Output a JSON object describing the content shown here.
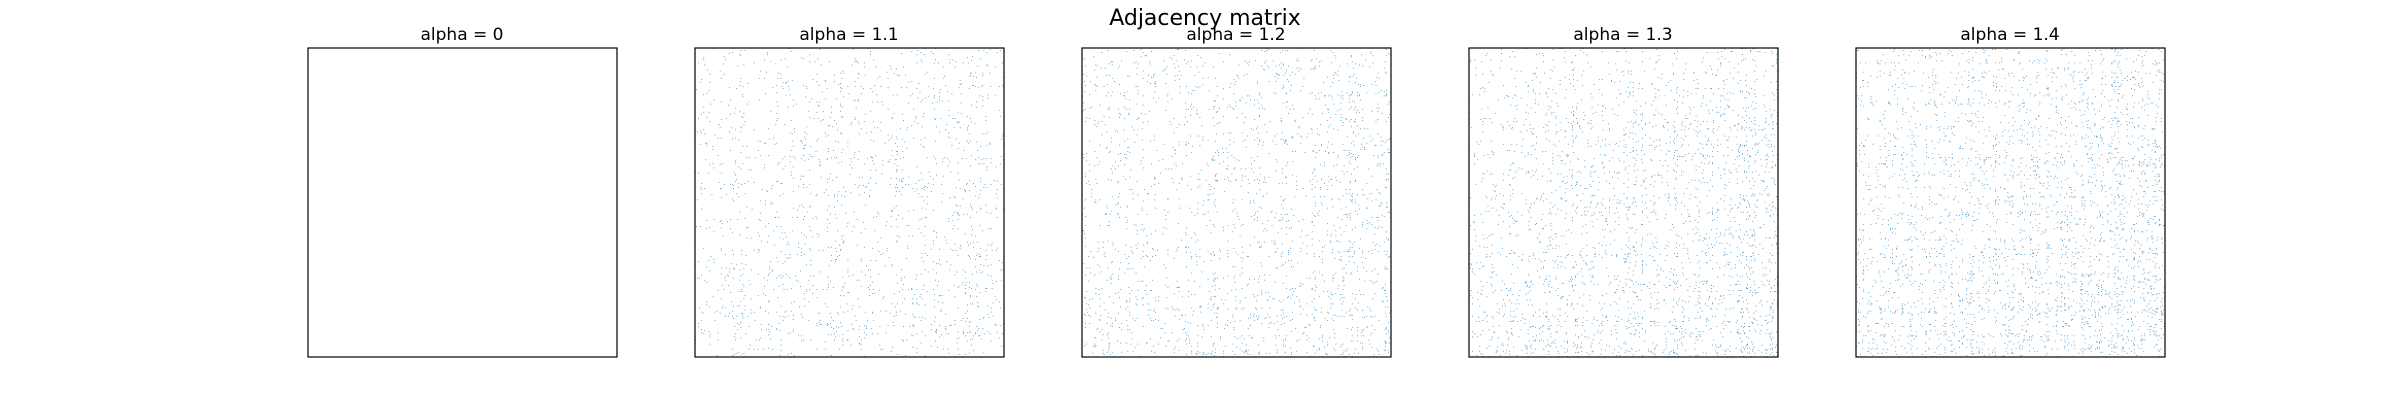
{
  "figure": {
    "title": "Adjacency matrix"
  },
  "chart_data": [
    {
      "type": "heatmap",
      "title": "alpha = 0",
      "alpha": 0,
      "matrix_description": "empty",
      "axes_ticks": "hidden",
      "colors": {
        "marker": "#1f77b4",
        "frame": "#000000"
      }
    },
    {
      "type": "heatmap",
      "title": "alpha = 1.1",
      "alpha": 1.1,
      "axes_ticks": "hidden",
      "colors": {
        "marker": "#1f77b4",
        "frame": "#000000"
      }
    },
    {
      "type": "heatmap",
      "title": "alpha = 1.2",
      "alpha": 1.2,
      "axes_ticks": "hidden",
      "colors": {
        "marker": "#1f77b4",
        "frame": "#000000"
      }
    },
    {
      "type": "heatmap",
      "title": "alpha = 1.3",
      "alpha": 1.3,
      "axes_ticks": "hidden",
      "colors": {
        "marker": "#1f77b4",
        "frame": "#000000"
      }
    },
    {
      "type": "heatmap",
      "title": "alpha = 1.4",
      "alpha": 1.4,
      "axes_ticks": "hidden",
      "colors": {
        "marker": "#1f77b4",
        "frame": "#000000"
      }
    }
  ]
}
